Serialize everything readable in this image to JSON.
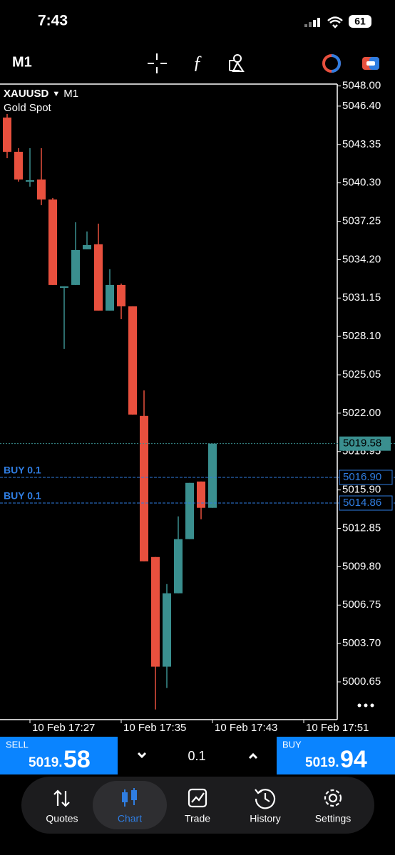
{
  "status": {
    "time": "7:43",
    "battery": "61"
  },
  "toolbar": {
    "timeframe": "M1"
  },
  "chart_data": {
    "type": "candlestick",
    "symbol": "XAUUSD",
    "timeframe": "M1",
    "subtitle": "Gold Spot",
    "categories": [
      null,
      null,
      "10 Feb 17:27",
      null,
      null,
      null,
      null,
      null,
      null,
      null,
      "10 Feb 17:35",
      null,
      null,
      null,
      null,
      null,
      null,
      null,
      "10 Feb 17:43",
      null,
      null,
      null,
      null,
      null,
      null,
      null,
      "10 Feb 17:51"
    ],
    "open": [
      5045.49,
      5042.77,
      5040.4,
      5040.57,
      5038.98,
      5031.96,
      5032.19,
      5035.02,
      5035.42,
      5030.15,
      5032.19,
      5030.49,
      5021.78,
      5010.57,
      5001.86,
      5007.69,
      5011.99,
      5016.57,
      5014.48,
      null,
      null,
      null,
      null,
      null,
      null,
      null,
      null
    ],
    "high": [
      5045.77,
      5043.06,
      5043.06,
      5043.06,
      5039.1,
      5032.08,
      5037.17,
      5036.44,
      5037.06,
      5033.44,
      5032.3,
      5030.49,
      5023.81,
      5010.57,
      5008.42,
      5013.8,
      5016.46,
      5016.57,
      5019.58,
      null,
      null,
      null,
      null,
      null,
      null,
      null,
      null
    ],
    "low": [
      5042.26,
      5040.4,
      5040.0,
      5038.53,
      5032.19,
      5027.1,
      5032.19,
      5035.02,
      5030.15,
      5030.15,
      5029.47,
      5021.89,
      5010.23,
      4998.46,
      5000.16,
      5007.69,
      5011.99,
      5013.57,
      5014.48,
      null,
      null,
      null,
      null,
      null,
      null,
      null,
      null
    ],
    "close": [
      5042.77,
      5040.57,
      5040.51,
      5038.98,
      5032.19,
      5032.08,
      5034.96,
      5035.36,
      5030.15,
      5032.19,
      5030.49,
      5021.89,
      5010.23,
      5001.86,
      5007.69,
      5011.99,
      5016.46,
      5014.48,
      5019.58,
      null,
      null,
      null,
      null,
      null,
      null,
      null,
      null
    ],
    "up_color": "#3a8f8f",
    "down_color": "#e8503e",
    "ylim": [
      4997.65,
      5048.15
    ],
    "yticks": [
      {
        "value": 5048,
        "label": "5048.00"
      },
      {
        "value": 5046.4,
        "label": "5046.40"
      },
      5043.35,
      {
        "value": 5040.3,
        "label": "5040.30"
      },
      5037.25,
      {
        "value": 5034.2,
        "label": "5034.20"
      },
      5031.15,
      {
        "value": 5028.1,
        "label": "5028.10"
      },
      5025.05,
      {
        "value": 5022,
        "label": "5022.00"
      },
      5018.95,
      {
        "value": 5015.9,
        "label": "5015.90"
      },
      5012.85,
      {
        "value": 5009.8,
        "label": "5009.80"
      },
      5006.75,
      {
        "value": 5003.7,
        "label": "5003.70"
      },
      5000.65
    ],
    "last_price": 5019.58,
    "orders": [
      {
        "name": "BUY 0.1",
        "value": 5016.9,
        "label": "5016.90"
      },
      {
        "name": "BUY 0.1",
        "value": 5014.86,
        "label": "5014.86"
      }
    ]
  },
  "trade": {
    "sell": {
      "label": "SELL",
      "price_main": "5019.",
      "price_pips": "58"
    },
    "volume": "0.1",
    "buy": {
      "label": "BUY",
      "price_main": "5019.",
      "price_pips": "94"
    }
  },
  "nav": {
    "items": [
      "Quotes",
      "Chart",
      "Trade",
      "History",
      "Settings"
    ]
  }
}
